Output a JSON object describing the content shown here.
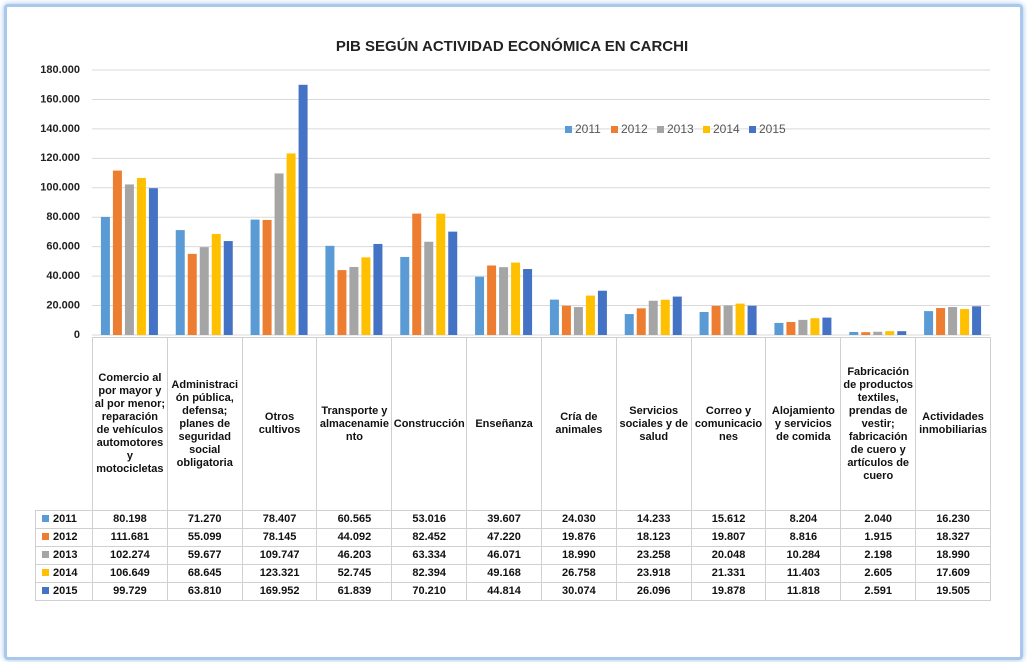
{
  "chart_data": {
    "type": "bar",
    "title": "PIB SEGÚN ACTIVIDAD ECONÓMICA EN CARCHI",
    "categories": [
      "Comercio al por mayor y al por menor; reparación de vehículos automotores y motocicletas",
      "Administración pública, defensa; planes de seguridad social obligatoria",
      "Otros cultivos",
      "Transporte y almacenamiento",
      "Construcción",
      "Enseñanza",
      "Cría de animales",
      "Servicios sociales y de salud",
      "Correo y comunicaciones",
      "Alojamiento y servicios de comida",
      "Fabricación de productos textiles, prendas de vestir; fabricación de cuero y artículos de cuero",
      "Actividades inmobiliarias"
    ],
    "series": [
      {
        "name": "2011",
        "color": "#5b9bd5",
        "values": [
          80198,
          71270,
          78407,
          60565,
          53016,
          39607,
          24030,
          14233,
          15612,
          8204,
          2040,
          16230
        ],
        "value_labels": [
          "80.198",
          "71.270",
          "78.407",
          "60.565",
          "53.016",
          "39.607",
          "24.030",
          "14.233",
          "15.612",
          "8.204",
          "2.040",
          "16.230"
        ]
      },
      {
        "name": "2012",
        "color": "#ed7d31",
        "values": [
          111681,
          55099,
          78145,
          44092,
          82452,
          47220,
          19876,
          18123,
          19807,
          8816,
          1915,
          18327
        ],
        "value_labels": [
          "111.681",
          "55.099",
          "78.145",
          "44.092",
          "82.452",
          "47.220",
          "19.876",
          "18.123",
          "19.807",
          "8.816",
          "1.915",
          "18.327"
        ]
      },
      {
        "name": "2013",
        "color": "#a5a5a5",
        "values": [
          102274,
          59677,
          109747,
          46203,
          63334,
          46071,
          18990,
          23258,
          20048,
          10284,
          2198,
          18990
        ],
        "value_labels": [
          "102.274",
          "59.677",
          "109.747",
          "46.203",
          "63.334",
          "46.071",
          "18.990",
          "23.258",
          "20.048",
          "10.284",
          "2.198",
          "18.990"
        ]
      },
      {
        "name": "2014",
        "color": "#ffc000",
        "values": [
          106649,
          68645,
          123321,
          52745,
          82394,
          49168,
          26758,
          23918,
          21331,
          11403,
          2605,
          17609
        ],
        "value_labels": [
          "106.649",
          "68.645",
          "123.321",
          "52.745",
          "82.394",
          "49.168",
          "26.758",
          "23.918",
          "21.331",
          "11.403",
          "2.605",
          "17.609"
        ]
      },
      {
        "name": "2015",
        "color": "#4472c4",
        "values": [
          99729,
          63810,
          169952,
          61839,
          70210,
          44814,
          30074,
          26096,
          19878,
          11818,
          2591,
          19505
        ],
        "value_labels": [
          "99.729",
          "63.810",
          "169.952",
          "61.839",
          "70.210",
          "44.814",
          "30.074",
          "26.096",
          "19.878",
          "11.818",
          "2.591",
          "19.505"
        ]
      }
    ],
    "ylim": [
      0,
      180000
    ],
    "yticks": [
      0,
      {
        "value": 20000,
        "label": "20.000"
      },
      {
        "value": 40000,
        "label": "40.000"
      },
      {
        "value": 60000,
        "label": "60.000"
      },
      {
        "value": 80000,
        "label": "80.000"
      },
      {
        "value": 100000,
        "label": "100.000"
      },
      {
        "value": 120000,
        "label": "120.000"
      },
      {
        "value": 140000,
        "label": "140.000"
      },
      {
        "value": 160000,
        "label": "160.000"
      },
      {
        "value": 180000,
        "label": "180.000"
      }
    ],
    "grid": true
  }
}
